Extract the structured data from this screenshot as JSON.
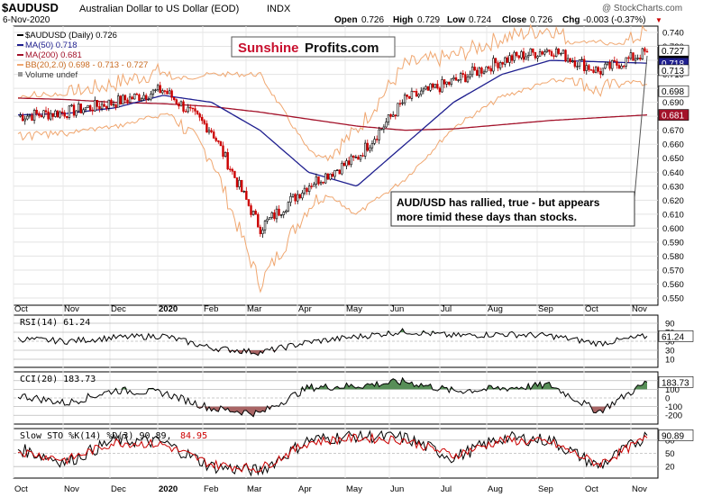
{
  "header": {
    "symbol": "$AUDUSD",
    "description": "Australian Dollar to US Dollar (EOD)",
    "exchange": "INDX",
    "copyright": "@ StockCharts.com",
    "date": "6-Nov-2020",
    "open_label": "Open",
    "open": "0.726",
    "high_label": "High",
    "high": "0.729",
    "low_label": "Low",
    "low": "0.724",
    "close_label": "Close",
    "close": "0.726",
    "chg_label": "Chg",
    "chg": "-0.003 (-0.37%)",
    "chg_arrow": "▼"
  },
  "legend": {
    "price": "$AUDUSD (Daily) 0.726",
    "ma50": "MA(50) 0.718",
    "ma200": "MA(200) 0.681",
    "bb": "BB(20,2.0) 0.698 - 0.713 - 0.727",
    "volume": "Volume undef"
  },
  "watermark": {
    "part1": "Sunshine",
    "part2": "Profits.com"
  },
  "annotation": {
    "line1": "AUD/USD has rallied, true - but appears",
    "line2": "more timid these days than stocks."
  },
  "indicators": {
    "rsi_label": "RSI(14) 61.24",
    "rsi_value": "61.24",
    "cci_label": "CCI(20) 183.73",
    "cci_value": "183.73",
    "sto_label": "Slow STO %K(14) %D(3) 90.89,",
    "sto_label_d": "84.95",
    "sto_value": "90.89"
  },
  "price_ticks": [
    "0.740",
    "0.730",
    "0.720",
    "0.710",
    "0.700",
    "0.690",
    "0.680",
    "0.670",
    "0.660",
    "0.650",
    "0.640",
    "0.630",
    "0.620",
    "0.610",
    "0.600",
    "0.590",
    "0.580",
    "0.570",
    "0.560",
    "0.550"
  ],
  "price_badges": {
    "close": "0.726",
    "bb_upper": "0.727",
    "ma50": "0.718",
    "bb_mid": "0.713",
    "bb_lower": "0.698",
    "ma200": "0.681"
  },
  "rsi_ticks": [
    "90",
    "70",
    "50",
    "30",
    "10"
  ],
  "cci_ticks": [
    "200",
    "100",
    "0",
    "-100",
    "-200"
  ],
  "sto_ticks": [
    "80",
    "50",
    "20"
  ],
  "x_ticks": [
    "Oct",
    "Nov",
    "Dec",
    "2020",
    "Feb",
    "Mar",
    "Apr",
    "May",
    "Jun",
    "Jul",
    "Aug",
    "Sep",
    "Oct",
    "Nov"
  ],
  "colors": {
    "up": "#000000",
    "down": "#cc0000",
    "ma50": "#1f1f8f",
    "ma200": "#a3122a",
    "bb": "#f0a770",
    "rsi_fill_hi": "#3a7a3a",
    "rsi_fill_lo": "#9a4a4a",
    "annotation_bg": "#ffffff",
    "sto_d": "#cc0000",
    "sto_k": "#000000"
  },
  "chart_data": {
    "type": "line",
    "ylim": [
      0.55,
      0.74
    ],
    "x": [
      "2019-10",
      "2019-11",
      "2019-12",
      "2020-01",
      "2020-02",
      "2020-03",
      "2020-04",
      "2020-05",
      "2020-06",
      "2020-07",
      "2020-08",
      "2020-09",
      "2020-10",
      "2020-11"
    ],
    "close": [
      0.68,
      0.683,
      0.69,
      0.699,
      0.67,
      0.6,
      0.631,
      0.65,
      0.692,
      0.705,
      0.72,
      0.728,
      0.712,
      0.726
    ],
    "ma50": [
      0.681,
      0.682,
      0.686,
      0.695,
      0.69,
      0.67,
      0.64,
      0.63,
      0.66,
      0.69,
      0.71,
      0.72,
      0.719,
      0.718
    ],
    "ma200": [
      0.693,
      0.692,
      0.69,
      0.689,
      0.687,
      0.683,
      0.678,
      0.673,
      0.67,
      0.671,
      0.674,
      0.677,
      0.679,
      0.681
    ],
    "rsi": [
      55,
      50,
      58,
      62,
      35,
      25,
      48,
      60,
      72,
      62,
      66,
      62,
      45,
      61.24
    ],
    "cci": [
      30,
      -60,
      90,
      60,
      -120,
      -180,
      120,
      140,
      190,
      80,
      110,
      150,
      -160,
      183.73
    ],
    "sto_k": [
      60,
      30,
      80,
      75,
      20,
      10,
      80,
      90,
      85,
      40,
      85,
      80,
      20,
      90.89
    ],
    "sto_d": [
      55,
      35,
      75,
      70,
      25,
      15,
      75,
      85,
      80,
      45,
      80,
      75,
      25,
      84.95
    ]
  }
}
